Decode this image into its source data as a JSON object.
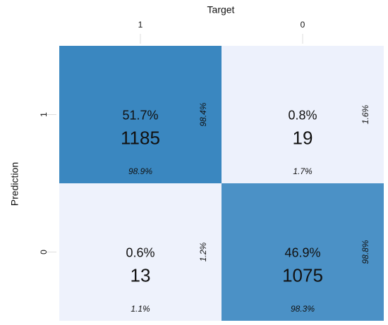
{
  "chart_data": {
    "type": "confusion_matrix",
    "x_label": "Target",
    "y_label": "Prediction",
    "x_categories": [
      "1",
      "0"
    ],
    "y_categories": [
      "1",
      "0"
    ],
    "values": [
      [
        1185,
        19
      ],
      [
        13,
        1075
      ]
    ],
    "total_pct": {
      "values": [
        [
          51.7,
          0.8
        ],
        [
          0.6,
          46.9
        ]
      ],
      "value_labels": [
        [
          "51.7%",
          "0.8%"
        ],
        [
          "0.6%",
          "46.9%"
        ]
      ]
    },
    "col_pct": {
      "values": [
        [
          98.9,
          1.7
        ],
        [
          1.1,
          98.3
        ]
      ],
      "value_labels": [
        [
          "98.9%",
          "1.7%"
        ],
        [
          "1.1%",
          "98.3%"
        ]
      ]
    },
    "row_pct": {
      "values": [
        [
          98.4,
          1.6
        ],
        [
          1.2,
          98.8
        ]
      ],
      "value_labels": [
        [
          "98.4%",
          "1.6%"
        ],
        [
          "1.2%",
          "98.8%"
        ]
      ]
    },
    "colormap": [
      "#eef2fc",
      "#3a87c0"
    ]
  }
}
